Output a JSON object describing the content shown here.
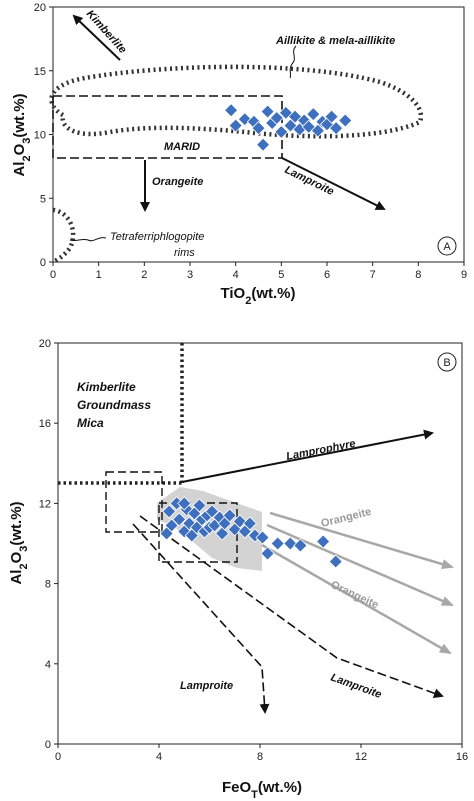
{
  "chart_data": [
    {
      "panel": "A",
      "type": "scatter",
      "xlabel": "TiO2(wt.%)",
      "ylabel": "Al2O3(wt.%)",
      "xlim": [
        0,
        9
      ],
      "ylim": [
        0,
        20
      ],
      "x_ticks": [
        "0",
        "1",
        "2",
        "3",
        "4",
        "5",
        "6",
        "7",
        "8",
        "9"
      ],
      "y_ticks": [
        "0",
        "5",
        "10",
        "15",
        "20"
      ],
      "grid": false,
      "marker": {
        "shape": "diamond",
        "color": "#3f6fbf",
        "stroke": "#ffffff"
      },
      "series": [
        {
          "points": [
            [
              3.9,
              11.9
            ],
            [
              4.0,
              10.7
            ],
            [
              4.2,
              11.2
            ],
            [
              4.4,
              11.0
            ],
            [
              4.5,
              10.5
            ],
            [
              4.6,
              9.2
            ],
            [
              4.7,
              11.8
            ],
            [
              4.8,
              10.9
            ],
            [
              4.9,
              11.3
            ],
            [
              5.0,
              10.2
            ],
            [
              5.1,
              11.7
            ],
            [
              5.2,
              10.7
            ],
            [
              5.3,
              11.4
            ],
            [
              5.4,
              10.4
            ],
            [
              5.5,
              11.1
            ],
            [
              5.6,
              10.6
            ],
            [
              5.7,
              11.6
            ],
            [
              5.8,
              10.3
            ],
            [
              5.9,
              11.0
            ],
            [
              6.0,
              10.8
            ],
            [
              6.1,
              11.4
            ],
            [
              6.2,
              10.5
            ],
            [
              6.4,
              11.1
            ]
          ]
        }
      ],
      "annotations": {
        "kimberlite": "Kimberlite",
        "aillikite": "Aillikite & mela-aillikite",
        "marid": "MARID",
        "orangeite": "Orangeite",
        "lamproite": "Lamproite",
        "tetraferri_line1": "Tetraferriphlogopite",
        "tetraferri_line2": "rims",
        "panel_label": "A"
      }
    },
    {
      "panel": "B",
      "type": "scatter",
      "xlabel": "FeOT(wt.%)",
      "ylabel": "Al2O3(wt.%)",
      "xlim": [
        0,
        16
      ],
      "ylim": [
        0,
        20
      ],
      "x_ticks": [
        "0",
        "4",
        "8",
        "12",
        "16"
      ],
      "y_ticks": [
        "0",
        "4",
        "8",
        "12",
        "16",
        "20"
      ],
      "grid": false,
      "marker": {
        "shape": "diamond",
        "color": "#3f6fbf",
        "stroke": "#ffffff"
      },
      "series": [
        {
          "points": [
            [
              4.4,
              11.6
            ],
            [
              4.5,
              10.9
            ],
            [
              4.7,
              12.0
            ],
            [
              4.8,
              11.2
            ],
            [
              5.0,
              10.6
            ],
            [
              5.1,
              11.7
            ],
            [
              5.2,
              11.0
            ],
            [
              5.3,
              10.4
            ],
            [
              5.4,
              11.5
            ],
            [
              5.5,
              10.8
            ],
            [
              5.6,
              11.9
            ],
            [
              5.7,
              11.2
            ],
            [
              5.8,
              10.6
            ],
            [
              5.9,
              11.4
            ],
            [
              6.0,
              10.8
            ],
            [
              6.1,
              11.6
            ],
            [
              6.2,
              10.9
            ],
            [
              6.4,
              11.3
            ],
            [
              6.5,
              10.5
            ],
            [
              6.6,
              11.0
            ],
            [
              6.8,
              11.4
            ],
            [
              7.0,
              10.7
            ],
            [
              7.2,
              11.1
            ],
            [
              7.4,
              10.6
            ],
            [
              7.6,
              11.0
            ],
            [
              7.8,
              10.4
            ],
            [
              8.1,
              10.3
            ],
            [
              8.3,
              9.5
            ],
            [
              8.7,
              10.0
            ],
            [
              9.2,
              10.0
            ],
            [
              9.6,
              9.9
            ],
            [
              10.5,
              10.1
            ],
            [
              11.0,
              9.1
            ],
            [
              4.3,
              10.5
            ],
            [
              5.0,
              12.0
            ]
          ]
        }
      ],
      "annotations": {
        "kimberlite_line1": "Kimberlite",
        "kimberlite_line2": "Groundmass",
        "kimberlite_line3": "Mica",
        "lamprophyre": "Lamprophyre",
        "orangeite": "Orangeite",
        "lamproite": "Lamproite",
        "panel_label": "B"
      }
    }
  ]
}
